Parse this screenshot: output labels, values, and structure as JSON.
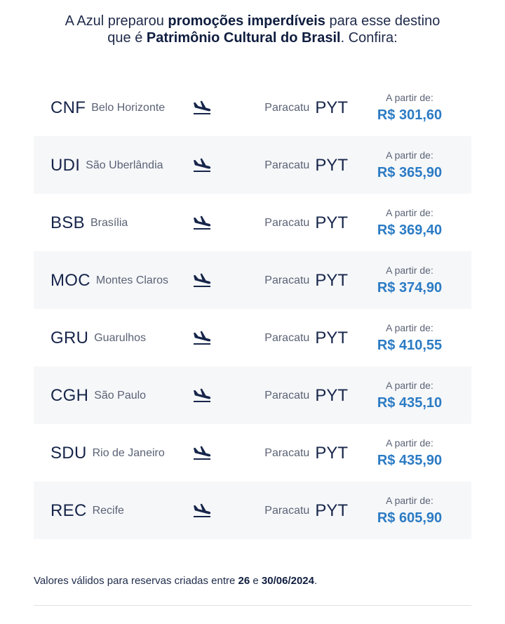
{
  "intro": {
    "line1_a": "A Azul preparou ",
    "line1_b": "promoções imperdíveis",
    "line1_c": " para esse destino",
    "line2_a": "que é ",
    "line2_b": "Patrimônio Cultural do Brasil",
    "line2_c": ". Confira:"
  },
  "routes": [
    {
      "origin_code": "CNF",
      "origin_city": "Belo Horizonte",
      "dest_city": "Paracatu",
      "dest_code": "PYT",
      "price_label": "A partir de:",
      "price": "R$ 301,60"
    },
    {
      "origin_code": "UDI",
      "origin_city": "São Uberlândia",
      "dest_city": "Paracatu",
      "dest_code": "PYT",
      "price_label": "A partir de:",
      "price": "R$ 365,90"
    },
    {
      "origin_code": "BSB",
      "origin_city": "Brasília",
      "dest_city": "Paracatu",
      "dest_code": "PYT",
      "price_label": "A partir de:",
      "price": "R$ 369,40"
    },
    {
      "origin_code": "MOC",
      "origin_city": "Montes Claros",
      "dest_city": "Paracatu",
      "dest_code": "PYT",
      "price_label": "A partir de:",
      "price": "R$ 374,90"
    },
    {
      "origin_code": "GRU",
      "origin_city": "Guarulhos",
      "dest_city": "Paracatu",
      "dest_code": "PYT",
      "price_label": "A partir de:",
      "price": "R$ 410,55"
    },
    {
      "origin_code": "CGH",
      "origin_city": "São Paulo",
      "dest_city": "Paracatu",
      "dest_code": "PYT",
      "price_label": "A partir de:",
      "price": "R$ 435,10"
    },
    {
      "origin_code": "SDU",
      "origin_city": "Rio de Janeiro",
      "dest_city": "Paracatu",
      "dest_code": "PYT",
      "price_label": "A partir de:",
      "price": "R$ 435,90"
    },
    {
      "origin_code": "REC",
      "origin_city": "Recife",
      "dest_city": "Paracatu",
      "dest_code": "PYT",
      "price_label": "A partir de:",
      "price": "R$ 605,90"
    }
  ],
  "icons": {
    "route": "plane-landing-icon"
  },
  "colors": {
    "price": "#2b7bc4",
    "text": "#16254a",
    "shaded_row": "#f6f7f9"
  },
  "footer": {
    "note_a": "Valores válidos para reservas criadas entre ",
    "note_b": "26",
    "note_c": " e ",
    "note_d": "30/06/2024",
    "note_e": "."
  }
}
